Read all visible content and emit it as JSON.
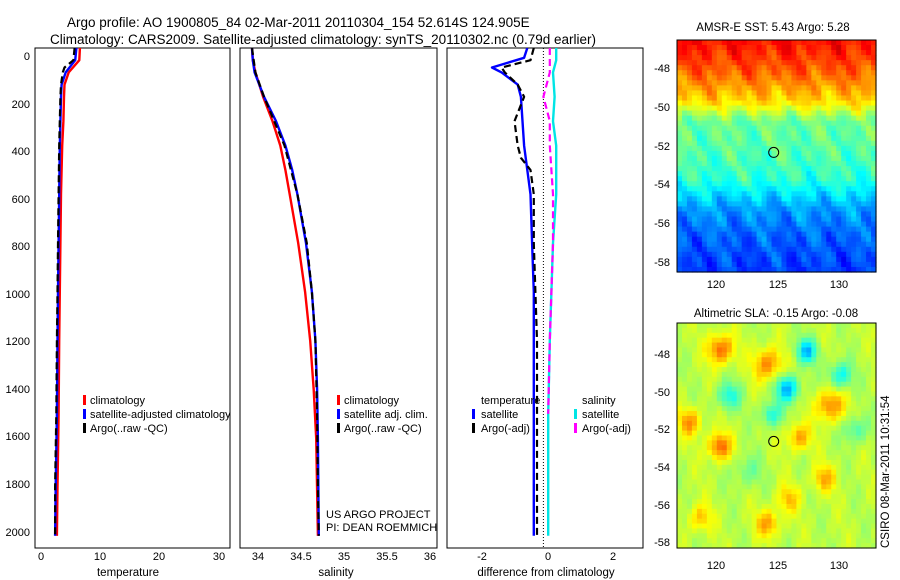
{
  "figure": {
    "title_line1": "Argo profile: AO 1900805_84 02-Mar-2011 20110304_154 52.614S 124.905E",
    "title_line2": "Climatology: CARS2009. Satellite-adjusted climatology: synTS_20110302.nc (0.79d earlier)",
    "credit": "CSIRO 08-Mar-2011 10:31:54"
  },
  "chart_data": [
    {
      "type": "line",
      "id": "temperature",
      "xlabel": "temperature",
      "xlim": [
        -1.5,
        31.5
      ],
      "ylim": [
        0,
        2050
      ],
      "xticks": [
        0,
        10,
        20,
        30
      ],
      "xtick_labels": [
        "0",
        "10",
        "20",
        "30"
      ],
      "yticks": [
        0,
        200,
        400,
        600,
        800,
        1000,
        1200,
        1400,
        1600,
        1800,
        2000
      ],
      "ytick_labels": [
        "0",
        "200",
        "400",
        "600",
        "800",
        "1000",
        "1200",
        "1400",
        "1600",
        "1800",
        "2000"
      ],
      "legend_labels": [
        "climatology",
        "satellite-adjusted climatology",
        "Argo(..raw -QC)"
      ],
      "series": [
        {
          "name": "climatology",
          "color": "#ff0000",
          "style": "solid",
          "depth": [
            0,
            50,
            100,
            150,
            200,
            300,
            400,
            600,
            800,
            1000,
            1200,
            1500,
            1800,
            2000
          ],
          "values": [
            6.1,
            6.0,
            4.2,
            3.5,
            3.4,
            3.3,
            3.1,
            2.9,
            2.8,
            2.7,
            2.6,
            2.5,
            2.3,
            2.2
          ]
        },
        {
          "name": "satellite-adjusted climatology",
          "color": "#0000ff",
          "style": "solid",
          "depth": [
            0,
            50,
            100,
            150,
            200,
            300,
            400,
            600,
            800,
            1000,
            1200,
            1500,
            1800,
            2000
          ],
          "values": [
            5.5,
            5.3,
            3.7,
            3.0,
            2.9,
            2.8,
            2.7,
            2.6,
            2.5,
            2.4,
            2.3,
            2.2,
            2.0,
            1.9
          ]
        },
        {
          "name": "Argo(..raw -QC)",
          "color": "#000000",
          "style": "dashed",
          "depth": [
            0,
            50,
            80,
            100,
            150,
            200,
            300,
            400,
            600,
            800,
            1000,
            1200,
            1500,
            1800,
            2000
          ],
          "values": [
            5.2,
            5.0,
            3.5,
            3.2,
            2.9,
            2.8,
            2.7,
            2.6,
            2.5,
            2.4,
            2.3,
            2.2,
            2.1,
            1.9,
            1.9
          ]
        }
      ]
    },
    {
      "type": "line",
      "id": "salinity",
      "xlabel": "salinity",
      "xlim": [
        33.8,
        36.1
      ],
      "ylim": [
        0,
        2050
      ],
      "xticks": [
        34,
        34.5,
        35,
        35.5,
        36
      ],
      "xtick_labels": [
        "34",
        "34.5",
        "35",
        "35.5",
        "36"
      ],
      "legend_labels": [
        "climatology",
        "satellite adj. clim.",
        "Argo(..raw -QC)"
      ],
      "annotation_lines": [
        "US ARGO PROJECT",
        "PI: DEAN ROEMMICH"
      ],
      "series": [
        {
          "name": "climatology",
          "color": "#ff0000",
          "style": "solid",
          "depth": [
            0,
            50,
            100,
            200,
            300,
            400,
            500,
            600,
            800,
            1000,
            1200,
            1400,
            1600,
            2000
          ],
          "values": [
            33.94,
            33.95,
            33.98,
            34.07,
            34.18,
            34.27,
            34.33,
            34.38,
            34.48,
            34.56,
            34.62,
            34.66,
            34.69,
            34.71
          ]
        },
        {
          "name": "satellite adj. clim.",
          "color": "#0000ff",
          "style": "solid",
          "depth": [
            0,
            50,
            100,
            200,
            300,
            400,
            500,
            600,
            800,
            1000,
            1200,
            1400,
            1600,
            2000
          ],
          "values": [
            33.94,
            33.95,
            33.97,
            34.08,
            34.22,
            34.33,
            34.41,
            34.47,
            34.57,
            34.64,
            34.68,
            34.7,
            34.71,
            34.72
          ]
        },
        {
          "name": "Argo(..raw -QC)",
          "color": "#000000",
          "style": "dashed",
          "depth": [
            0,
            50,
            100,
            150,
            200,
            300,
            400,
            600,
            800,
            1000,
            1200,
            1500,
            1800,
            2000
          ],
          "values": [
            33.94,
            33.96,
            33.98,
            34.03,
            34.08,
            34.2,
            34.32,
            34.47,
            34.58,
            34.64,
            34.68,
            34.7,
            34.71,
            34.72
          ]
        }
      ]
    },
    {
      "type": "line",
      "id": "difference",
      "xlabel": "difference from climatology",
      "xlim": [
        -3,
        3.1
      ],
      "ylim": [
        0,
        2050
      ],
      "xticks": [
        -2,
        0,
        2
      ],
      "xtick_labels": [
        "-2",
        "0",
        "2"
      ],
      "legend_heading_left": "temperature",
      "legend_heading_right": "salinity",
      "legend_labels_left": [
        "satellite",
        "Argo(-adj)"
      ],
      "legend_labels_right": [
        "satellite",
        "Argo(-adj)"
      ],
      "series": [
        {
          "name": "temperature satellite",
          "color": "#0000ff",
          "style": "solid",
          "depth": [
            0,
            40,
            80,
            100,
            150,
            200,
            300,
            400,
            500,
            600,
            800,
            1000,
            1200,
            1500,
            1800,
            2000
          ],
          "values": [
            -0.5,
            -0.6,
            -1.6,
            -1.3,
            -0.8,
            -0.7,
            -0.65,
            -0.6,
            -0.5,
            -0.4,
            -0.35,
            -0.3,
            -0.3,
            -0.3,
            -0.3,
            -0.3
          ]
        },
        {
          "name": "temperature Argo(-adj)",
          "color": "#000000",
          "style": "dashed",
          "depth": [
            0,
            50,
            80,
            100,
            150,
            200,
            300,
            400,
            450,
            500,
            600,
            800,
            1000,
            1200,
            1500,
            1800,
            2000
          ],
          "values": [
            -0.3,
            -0.4,
            -1.3,
            -1.2,
            -0.8,
            -0.6,
            -0.9,
            -0.8,
            -0.7,
            -0.4,
            -0.3,
            -0.3,
            -0.25,
            -0.2,
            -0.2,
            -0.2,
            -0.2
          ]
        },
        {
          "name": "salinity satellite",
          "color": "#00e5e5",
          "style": "solid",
          "depth": [
            0,
            50,
            100,
            200,
            300,
            400,
            500,
            600,
            800,
            1000,
            1200,
            1500,
            1800,
            2000
          ],
          "values": [
            0.4,
            0.4,
            0.3,
            0.35,
            0.3,
            0.4,
            0.4,
            0.4,
            0.3,
            0.25,
            0.2,
            0.15,
            0.15,
            0.15
          ]
        },
        {
          "name": "salinity Argo(-adj)",
          "color": "#ff00ff",
          "style": "dashed",
          "depth": [
            0,
            100,
            200,
            300,
            400,
            600,
            800,
            1000,
            1200,
            1500
          ],
          "values": [
            0.2,
            0.2,
            0.0,
            0.2,
            0.2,
            0.3,
            0.3,
            0.25,
            0.2,
            0.15
          ]
        }
      ],
      "zero_line": {
        "x": 0,
        "color": "#000000",
        "style": "dotted"
      }
    }
  ],
  "maps": [
    {
      "id": "sst",
      "title": "AMSR-E SST: 5.43 Argo: 5.28",
      "xlim": [
        116.5,
        133.8
      ],
      "ylim": [
        -58.8,
        -46.8
      ],
      "xticks": [
        120,
        125,
        130
      ],
      "xtick_labels": [
        "120",
        "125",
        "130"
      ],
      "yticks": [
        -48,
        -50,
        -52,
        -54,
        -56,
        -58
      ],
      "ytick_labels": [
        "-48",
        "-50",
        "-52",
        "-54",
        "-56",
        "-58"
      ],
      "colormap": [
        "#00008f",
        "#0000ff",
        "#0080ff",
        "#00ffff",
        "#80ff80",
        "#ffff00",
        "#ff8000",
        "#ff0000",
        "#800000"
      ],
      "bands": [
        {
          "lat": -47,
          "level": 0.86
        },
        {
          "lat": -48.5,
          "level": 0.78
        },
        {
          "lat": -50,
          "level": 0.66
        },
        {
          "lat": -51,
          "level": 0.48
        },
        {
          "lat": -52.5,
          "level": 0.46
        },
        {
          "lat": -54,
          "level": 0.42
        },
        {
          "lat": -55.5,
          "level": 0.28
        },
        {
          "lat": -57,
          "level": 0.22
        },
        {
          "lat": -58.8,
          "level": 0.18
        }
      ],
      "float_position": {
        "lon": 124.905,
        "lat": -52.614
      }
    },
    {
      "id": "sla",
      "title": "Altimetric SLA: -0.15 Argo: -0.08",
      "xlim": [
        116.5,
        133.8
      ],
      "ylim": [
        -58.3,
        -46.3
      ],
      "xticks": [
        120,
        125,
        130
      ],
      "xtick_labels": [
        "120",
        "125",
        "130"
      ],
      "yticks": [
        -48,
        -50,
        -52,
        -54,
        -56,
        -58
      ],
      "ytick_labels": [
        "-48",
        "-50",
        "-52",
        "-54",
        "-56",
        "-58"
      ],
      "colormap": [
        "#00008f",
        "#0000ff",
        "#0080ff",
        "#00ffff",
        "#80ff80",
        "#ffff00",
        "#ff8000",
        "#ff0000",
        "#800000"
      ],
      "base_level": 0.56,
      "features": [
        {
          "lon": 120.3,
          "lat": -47.7,
          "level": 0.78,
          "r": 1.1
        },
        {
          "lon": 127.8,
          "lat": -47.8,
          "level": 0.32,
          "r": 0.9
        },
        {
          "lon": 124.4,
          "lat": -48.5,
          "level": 0.75,
          "r": 1.2
        },
        {
          "lon": 126.1,
          "lat": -49.8,
          "level": 0.3,
          "r": 1.0
        },
        {
          "lon": 130.7,
          "lat": -49.1,
          "level": 0.38,
          "r": 1.0
        },
        {
          "lon": 121.0,
          "lat": -50.2,
          "level": 0.4,
          "r": 1.0
        },
        {
          "lon": 129.8,
          "lat": -50.7,
          "level": 0.75,
          "r": 1.2
        },
        {
          "lon": 117.6,
          "lat": -51.6,
          "level": 0.73,
          "r": 1.0
        },
        {
          "lon": 124.7,
          "lat": -51.2,
          "level": 0.4,
          "r": 0.9
        },
        {
          "lon": 120.2,
          "lat": -52.9,
          "level": 0.78,
          "r": 1.0
        },
        {
          "lon": 127.1,
          "lat": -52.4,
          "level": 0.72,
          "r": 1.0
        },
        {
          "lon": 132.0,
          "lat": -52.0,
          "level": 0.44,
          "r": 1.0
        },
        {
          "lon": 122.6,
          "lat": -54.2,
          "level": 0.48,
          "r": 1.2
        },
        {
          "lon": 129.3,
          "lat": -54.6,
          "level": 0.7,
          "r": 1.0
        },
        {
          "lon": 126.2,
          "lat": -55.7,
          "level": 0.68,
          "r": 1.0
        },
        {
          "lon": 118.5,
          "lat": -56.7,
          "level": 0.68,
          "r": 1.0
        },
        {
          "lon": 124.4,
          "lat": -57.0,
          "level": 0.72,
          "r": 1.0
        }
      ],
      "float_position": {
        "lon": 124.905,
        "lat": -52.614
      }
    }
  ]
}
